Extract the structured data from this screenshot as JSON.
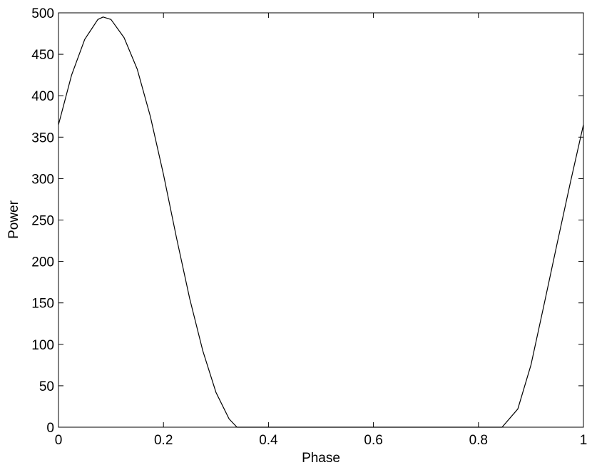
{
  "chart_data": {
    "type": "line",
    "x_label": "Phase",
    "y_label": "Power",
    "x": [
      0,
      0.025,
      0.05,
      0.075,
      0.085,
      0.1,
      0.125,
      0.15,
      0.175,
      0.2,
      0.225,
      0.25,
      0.275,
      0.3,
      0.325,
      0.34,
      0.4,
      0.5,
      0.6,
      0.7,
      0.8,
      0.845,
      0.875,
      0.9,
      0.925,
      0.95,
      0.975,
      1
    ],
    "series": [
      {
        "color": "#000000",
        "values": [
          365,
          425,
          468,
          492,
          495,
          492,
          470,
          432,
          375,
          305,
          228,
          155,
          92,
          42,
          10,
          0,
          0,
          0,
          0,
          0,
          0,
          0,
          22,
          75,
          148,
          222,
          295,
          365
        ]
      }
    ],
    "xlim": [
      0,
      1
    ],
    "xticks": [
      0,
      0.2,
      0.4,
      0.6,
      0.8,
      1
    ],
    "ylim": [
      0,
      500
    ],
    "yticks": [
      0,
      50,
      100,
      150,
      200,
      250,
      300,
      350,
      400,
      450,
      500
    ],
    "grid": false
  }
}
